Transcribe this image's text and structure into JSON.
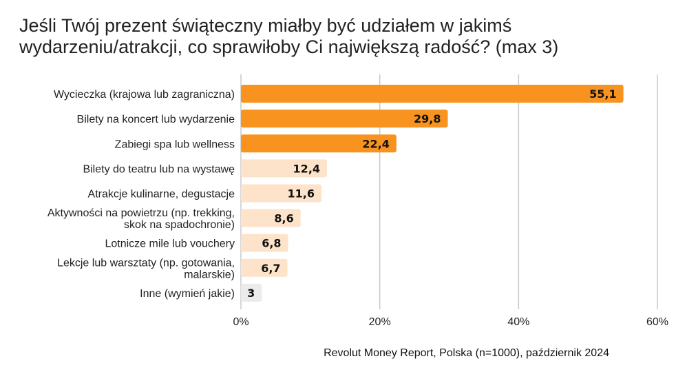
{
  "chart_data": {
    "type": "bar",
    "orientation": "horizontal",
    "title": "Jeśli Twój prezent świąteczny miałby być udziałem w jakimś wydarzeniu/atrakcji, co sprawiłoby Ci największą radość? (max 3)",
    "categories": [
      [
        "Wycieczka (krajowa lub zagraniczna)"
      ],
      [
        "Bilety na koncert lub wydarzenie"
      ],
      [
        "Zabiegi spa lub wellness"
      ],
      [
        "Bilety do teatru lub na wystawę"
      ],
      [
        "Atrakcje kulinarne, degustacje"
      ],
      [
        "Aktywności na powietrzu (np. trekking,",
        "skok na spadochronie)"
      ],
      [
        "Lotnicze mile lub vouchery"
      ],
      [
        "Lekcje lub warsztaty (np. gotowania,",
        "malarskie)"
      ],
      [
        "Inne (wymień jakie)"
      ]
    ],
    "values": [
      55.1,
      29.8,
      22.4,
      12.4,
      11.6,
      8.6,
      6.8,
      6.7,
      3
    ],
    "value_labels": [
      "55,1",
      "29,8",
      "22,4",
      "12,4",
      "11,6",
      "8,6",
      "6,8",
      "6,7",
      "3"
    ],
    "bar_colors": [
      "#f7931e",
      "#f7931e",
      "#f7931e",
      "#fde3c9",
      "#fde3c9",
      "#fde3c9",
      "#fde3c9",
      "#fde3c9",
      "#ebebeb"
    ],
    "xlim": [
      0,
      60
    ],
    "xticks": [
      0,
      20,
      40,
      60
    ],
    "xtick_labels": [
      "0%",
      "20%",
      "40%",
      "60%"
    ],
    "grid": true
  },
  "source": "Revolut Money Report, Polska (n=1000), październik 2024"
}
